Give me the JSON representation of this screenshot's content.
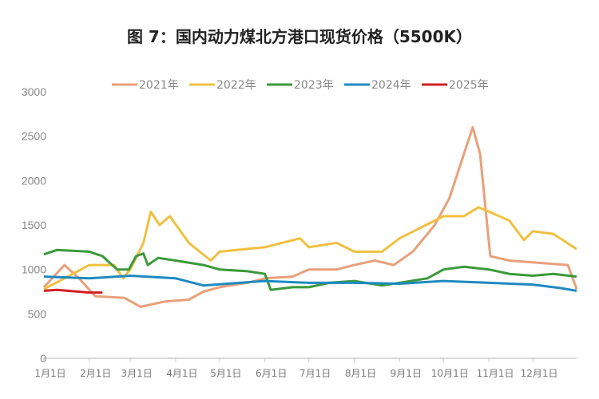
{
  "chart_data": {
    "type": "line",
    "title": "图 7：国内动力煤北方港口现货价格（5500K）",
    "ylim": [
      0,
      3000
    ],
    "yticks": [
      0,
      500,
      1000,
      1500,
      2000,
      2500,
      3000
    ],
    "xticks": [
      "1月1日",
      "2月1日",
      "3月1日",
      "4月1日",
      "5月1日",
      "6月1日",
      "7月1日",
      "8月1日",
      "9月1日",
      "10月1日",
      "11月1日",
      "12月1日"
    ],
    "grid": false,
    "legend": "top",
    "series": [
      {
        "name": "2021年",
        "color": "#e8a07a",
        "points": [
          [
            "01-01",
            800
          ],
          [
            "01-15",
            1050
          ],
          [
            "01-25",
            900
          ],
          [
            "02-05",
            700
          ],
          [
            "02-25",
            680
          ],
          [
            "03-08",
            580
          ],
          [
            "03-25",
            640
          ],
          [
            "04-10",
            660
          ],
          [
            "04-20",
            750
          ],
          [
            "05-01",
            800
          ],
          [
            "05-20",
            850
          ],
          [
            "06-01",
            900
          ],
          [
            "06-20",
            920
          ],
          [
            "07-01",
            1000
          ],
          [
            "07-20",
            1000
          ],
          [
            "08-01",
            1050
          ],
          [
            "08-15",
            1100
          ],
          [
            "08-28",
            1050
          ],
          [
            "09-10",
            1200
          ],
          [
            "09-25",
            1500
          ],
          [
            "10-05",
            1800
          ],
          [
            "10-15",
            2300
          ],
          [
            "10-21",
            2600
          ],
          [
            "10-26",
            2300
          ],
          [
            "11-02",
            1150
          ],
          [
            "11-15",
            1100
          ],
          [
            "12-01",
            1080
          ],
          [
            "12-25",
            1050
          ],
          [
            "12-31",
            780
          ]
        ]
      },
      {
        "name": "2022年",
        "color": "#f0c040",
        "points": [
          [
            "01-01",
            780
          ],
          [
            "01-15",
            900
          ],
          [
            "02-01",
            1050
          ],
          [
            "02-18",
            1050
          ],
          [
            "02-24",
            900
          ],
          [
            "03-01",
            1000
          ],
          [
            "03-10",
            1300
          ],
          [
            "03-15",
            1650
          ],
          [
            "03-21",
            1500
          ],
          [
            "03-28",
            1600
          ],
          [
            "04-10",
            1300
          ],
          [
            "04-25",
            1100
          ],
          [
            "05-01",
            1200
          ],
          [
            "06-01",
            1250
          ],
          [
            "06-25",
            1350
          ],
          [
            "07-01",
            1250
          ],
          [
            "07-20",
            1300
          ],
          [
            "08-01",
            1200
          ],
          [
            "08-20",
            1200
          ],
          [
            "09-01",
            1350
          ],
          [
            "10-01",
            1600
          ],
          [
            "10-15",
            1600
          ],
          [
            "10-25",
            1700
          ],
          [
            "11-01",
            1650
          ],
          [
            "11-15",
            1550
          ],
          [
            "11-25",
            1330
          ],
          [
            "12-01",
            1430
          ],
          [
            "12-15",
            1400
          ],
          [
            "12-31",
            1230
          ]
        ]
      },
      {
        "name": "2023年",
        "color": "#3a9a3a",
        "points": [
          [
            "01-01",
            1170
          ],
          [
            "01-10",
            1220
          ],
          [
            "02-01",
            1200
          ],
          [
            "02-10",
            1150
          ],
          [
            "02-20",
            1000
          ],
          [
            "02-28",
            1000
          ],
          [
            "03-05",
            1150
          ],
          [
            "03-10",
            1180
          ],
          [
            "03-13",
            1050
          ],
          [
            "03-20",
            1130
          ],
          [
            "04-01",
            1100
          ],
          [
            "04-20",
            1050
          ],
          [
            "05-01",
            1000
          ],
          [
            "05-20",
            980
          ],
          [
            "06-01",
            950
          ],
          [
            "06-05",
            770
          ],
          [
            "06-20",
            800
          ],
          [
            "07-01",
            800
          ],
          [
            "07-15",
            850
          ],
          [
            "08-01",
            870
          ],
          [
            "08-20",
            820
          ],
          [
            "09-01",
            850
          ],
          [
            "09-20",
            900
          ],
          [
            "10-01",
            1000
          ],
          [
            "10-15",
            1030
          ],
          [
            "11-01",
            1000
          ],
          [
            "11-15",
            950
          ],
          [
            "12-01",
            930
          ],
          [
            "12-15",
            950
          ],
          [
            "12-31",
            920
          ]
        ]
      },
      {
        "name": "2024年",
        "color": "#1f8ac0",
        "points": [
          [
            "01-01",
            920
          ],
          [
            "02-01",
            900
          ],
          [
            "03-01",
            930
          ],
          [
            "04-01",
            900
          ],
          [
            "04-20",
            820
          ],
          [
            "05-15",
            850
          ],
          [
            "06-01",
            870
          ],
          [
            "07-01",
            850
          ],
          [
            "08-01",
            850
          ],
          [
            "09-01",
            840
          ],
          [
            "10-01",
            870
          ],
          [
            "11-01",
            850
          ],
          [
            "12-01",
            830
          ],
          [
            "12-20",
            790
          ],
          [
            "12-31",
            760
          ]
        ]
      },
      {
        "name": "2025年",
        "color": "#d02020",
        "points": [
          [
            "01-01",
            760
          ],
          [
            "01-10",
            770
          ],
          [
            "02-01",
            740
          ],
          [
            "02-10",
            740
          ]
        ]
      }
    ]
  }
}
